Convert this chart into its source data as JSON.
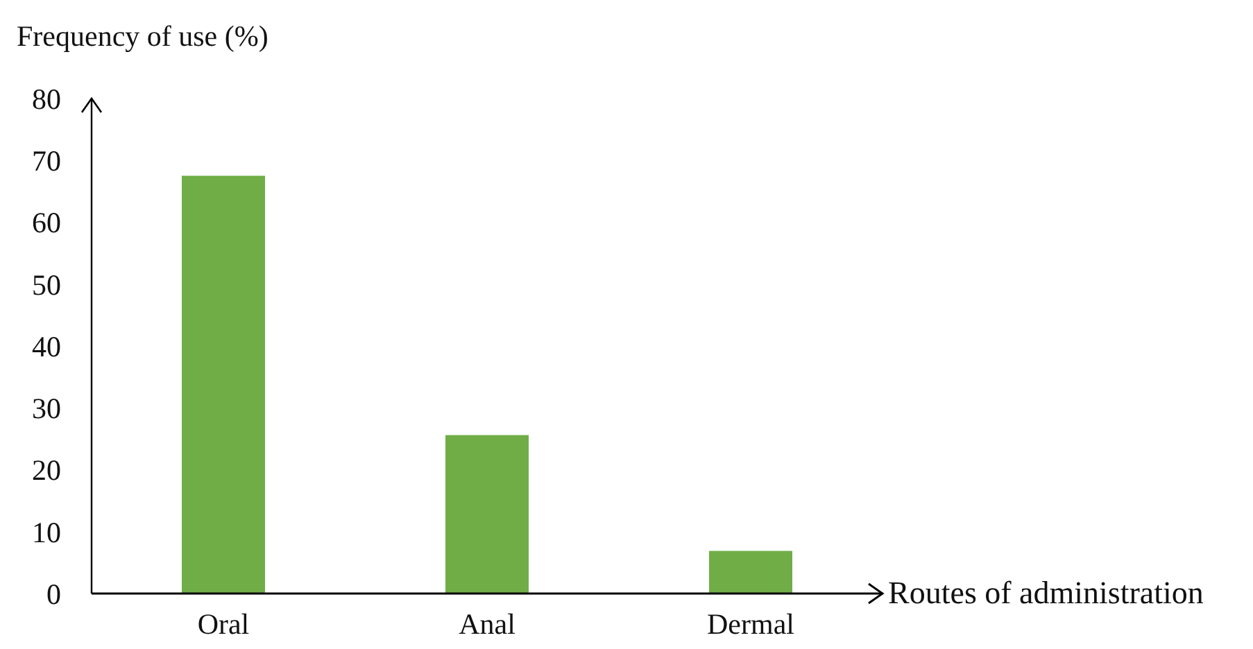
{
  "chart_data": {
    "type": "bar",
    "ylabel": "Frequency of use (%)",
    "xlabel": "Routes of administration",
    "categories": [
      "Oral",
      "Anal",
      "Dermal"
    ],
    "values": [
      67.5,
      25.6,
      6.9
    ],
    "color": "#70ad47",
    "ylim": [
      0,
      80
    ],
    "yticks": [
      0,
      10,
      20,
      30,
      40,
      50,
      60,
      70,
      80
    ],
    "grid": false,
    "legend": false
  }
}
